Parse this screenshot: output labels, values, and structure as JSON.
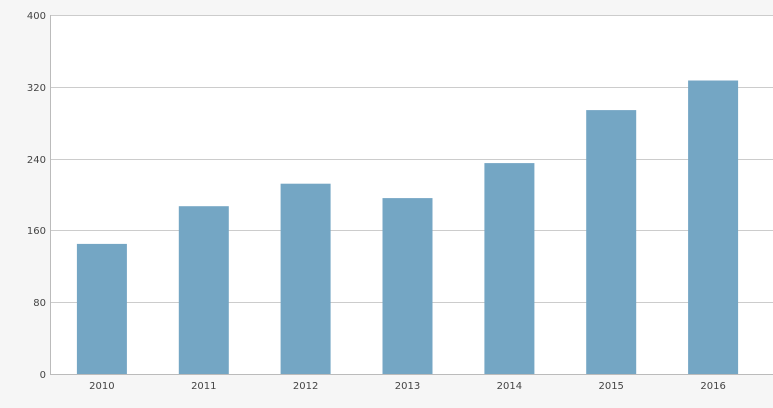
{
  "chart_data": {
    "type": "bar",
    "categories": [
      "2010",
      "2011",
      "2012",
      "2013",
      "2014",
      "2015",
      "2016"
    ],
    "values": [
      145,
      187,
      212,
      196,
      235,
      294,
      327
    ],
    "ylim": [
      0,
      400
    ],
    "yticks": [
      0,
      80,
      160,
      240,
      320,
      400
    ],
    "grid": true,
    "colors": {
      "bar": "#74a6c4",
      "plot_background": "#ffffff",
      "page_background": "#f6f6f6",
      "grid": "#cccccc",
      "axis": "#bbbbbb"
    }
  }
}
